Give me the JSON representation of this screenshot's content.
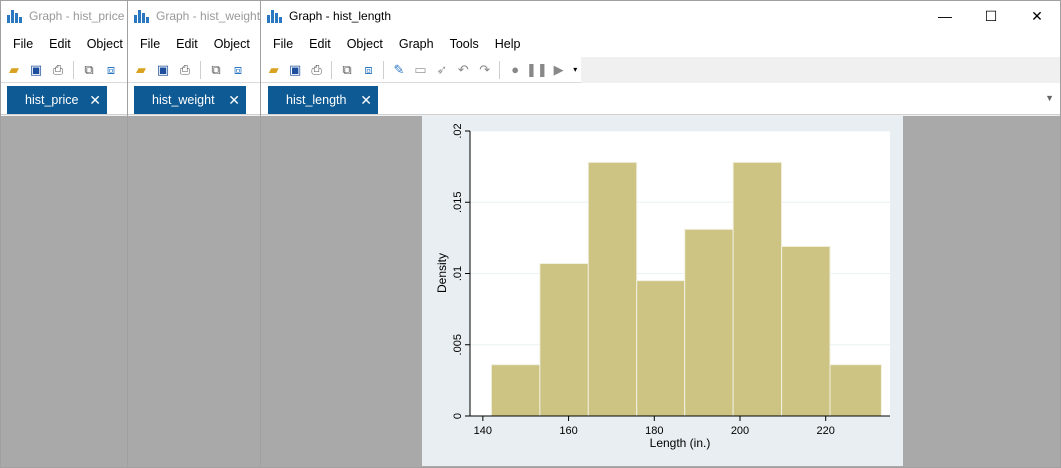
{
  "windows": [
    {
      "title": "Graph - hist_price",
      "tab": "hist_price"
    },
    {
      "title": "Graph - hist_weight",
      "tab": "hist_weight"
    },
    {
      "title": "Graph - hist_length",
      "tab": "hist_length"
    }
  ],
  "menus_back": [
    "File",
    "Edit",
    "Object"
  ],
  "menus_main": [
    "File",
    "Edit",
    "Object",
    "Graph",
    "Tools",
    "Help"
  ],
  "tab_close_glyph": "✕",
  "window_controls": {
    "minimize": "—",
    "maximize": "☐",
    "close": "✕"
  },
  "colors": {
    "tab_bg": "#0d5a94",
    "bar_fill": "#cdc483",
    "bar_stroke": "#f2f0e0",
    "plot_region": "#e8eef1",
    "canvas": "#a9a9a9"
  },
  "chart_data": {
    "type": "bar",
    "xlabel": "Length (in.)",
    "ylabel": "Density",
    "xticks": [
      "140",
      "160",
      "180",
      "200",
      "220"
    ],
    "yticks": [
      "0",
      ".005",
      ".01",
      ".015",
      ".02"
    ],
    "xlim": [
      137,
      235
    ],
    "ylim": [
      0,
      0.02
    ],
    "bins": [
      {
        "x0": 142,
        "x1": 153.3,
        "density": 0.0036
      },
      {
        "x0": 153.3,
        "x1": 164.6,
        "density": 0.0107
      },
      {
        "x0": 164.6,
        "x1": 175.9,
        "density": 0.0178
      },
      {
        "x0": 175.9,
        "x1": 187.1,
        "density": 0.0095
      },
      {
        "x0": 187.1,
        "x1": 198.4,
        "density": 0.0131
      },
      {
        "x0": 198.4,
        "x1": 209.7,
        "density": 0.0178
      },
      {
        "x0": 209.7,
        "x1": 221,
        "density": 0.0119
      },
      {
        "x0": 221,
        "x1": 233,
        "density": 0.0036
      }
    ]
  }
}
